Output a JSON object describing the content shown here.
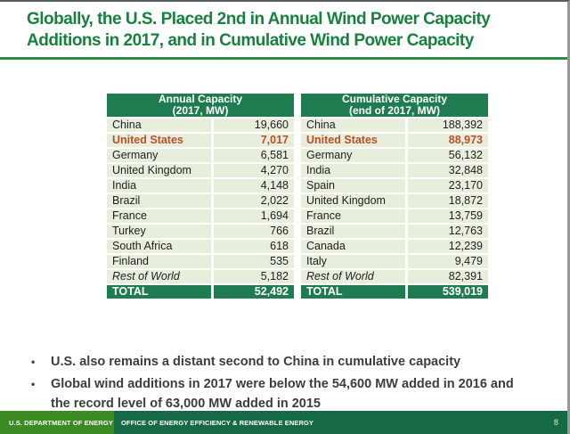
{
  "title": {
    "line1": "Globally, the U.S. Placed 2nd in Annual Wind Power Capacity",
    "line2": "Additions in 2017, and in Cumulative Wind Power Capacity"
  },
  "tables": [
    {
      "header_line1": "Annual Capacity",
      "header_line2": "(2017, MW)",
      "rows": [
        {
          "name": "China",
          "value": "19,660"
        },
        {
          "name": "United States",
          "value": "7,017",
          "highlight": true
        },
        {
          "name": "Germany",
          "value": "6,581"
        },
        {
          "name": "United Kingdom",
          "value": "4,270"
        },
        {
          "name": "India",
          "value": "4,148"
        },
        {
          "name": "Brazil",
          "value": "2,022"
        },
        {
          "name": "France",
          "value": "1,694"
        },
        {
          "name": "Turkey",
          "value": "766"
        },
        {
          "name": "South Africa",
          "value": "618"
        },
        {
          "name": "Finland",
          "value": "535"
        },
        {
          "name": "Rest of World",
          "value": "5,182",
          "italic": true
        }
      ],
      "total_label": "TOTAL",
      "total_value": "52,492"
    },
    {
      "header_line1": "Cumulative Capacity",
      "header_line2": "(end of 2017, MW)",
      "rows": [
        {
          "name": "China",
          "value": "188,392"
        },
        {
          "name": "United States",
          "value": "88,973",
          "highlight": true
        },
        {
          "name": "Germany",
          "value": "56,132"
        },
        {
          "name": "India",
          "value": "32,848"
        },
        {
          "name": "Spain",
          "value": "23,170"
        },
        {
          "name": "United Kingdom",
          "value": "18,872"
        },
        {
          "name": "France",
          "value": "13,759"
        },
        {
          "name": "Brazil",
          "value": "12,763"
        },
        {
          "name": "Canada",
          "value": "12,239"
        },
        {
          "name": "Italy",
          "value": "9,479"
        },
        {
          "name": "Rest of World",
          "value": "82,391",
          "italic": true
        }
      ],
      "total_label": "TOTAL",
      "total_value": "539,019"
    }
  ],
  "bullets": {
    "marker": "•",
    "items": [
      "U.S. also remains a distant second to China in cumulative capacity",
      "Global wind additions in 2017 were below the 54,600 MW added in 2016 and the record level of 63,000 MW added in 2015"
    ]
  },
  "footer": {
    "left": "U.S. DEPARTMENT OF ENERGY",
    "right": "OFFICE OF ENERGY EFFICIENCY & RENEWABLE ENERGY",
    "page_number": "8"
  },
  "colors": {
    "title_green": "#17813d",
    "rule_green": "#2e8c46",
    "table_header_green": "#1f7c50",
    "row_background": "#e8eedc",
    "highlight_orange": "#bc4f26",
    "bullet_text": "#3d3d3d",
    "footer_left_green": "#3c8a22",
    "footer_right_green": "#156a45"
  }
}
